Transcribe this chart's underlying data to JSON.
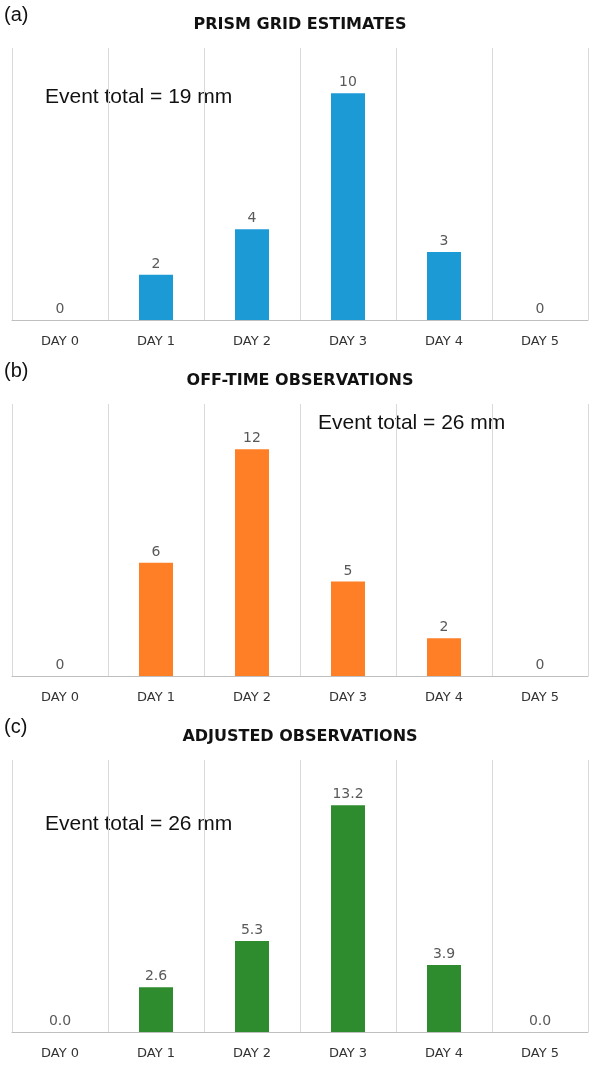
{
  "chart_data": [
    {
      "type": "bar",
      "title": "PRISM GRID ESTIMATES",
      "annotations": [
        "(a)",
        "Event total = 19 mm"
      ],
      "categories": [
        "DAY 0",
        "DAY 1",
        "DAY 2",
        "DAY 3",
        "DAY 4",
        "DAY 5"
      ],
      "values": [
        0,
        2,
        4,
        10,
        3,
        0
      ],
      "color": "#1b9ad6",
      "data_labels": true,
      "grid": "x"
    },
    {
      "type": "bar",
      "title": "OFF-TIME OBSERVATIONS",
      "annotations": [
        "(b)",
        "Event total = 26 mm"
      ],
      "categories": [
        "DAY 0",
        "DAY 1",
        "DAY 2",
        "DAY 3",
        "DAY 4",
        "DAY 5"
      ],
      "values": [
        0,
        6,
        12,
        5,
        2,
        0
      ],
      "color": "#ff7f27",
      "data_labels": true,
      "grid": "x"
    },
    {
      "type": "bar",
      "title": "ADJUSTED OBSERVATIONS",
      "annotations": [
        "(c)",
        "Event total = 26 mm"
      ],
      "categories": [
        "DAY 0",
        "DAY 1",
        "DAY 2",
        "DAY 3",
        "DAY 4",
        "DAY 5"
      ],
      "values": [
        0.0,
        2.6,
        5.3,
        13.2,
        3.9,
        0.0
      ],
      "value_labels": [
        "0.0",
        "2.6",
        "5.3",
        "13.2",
        "3.9",
        "0.0"
      ],
      "color": "#2e8b2e",
      "grid": "x"
    }
  ]
}
